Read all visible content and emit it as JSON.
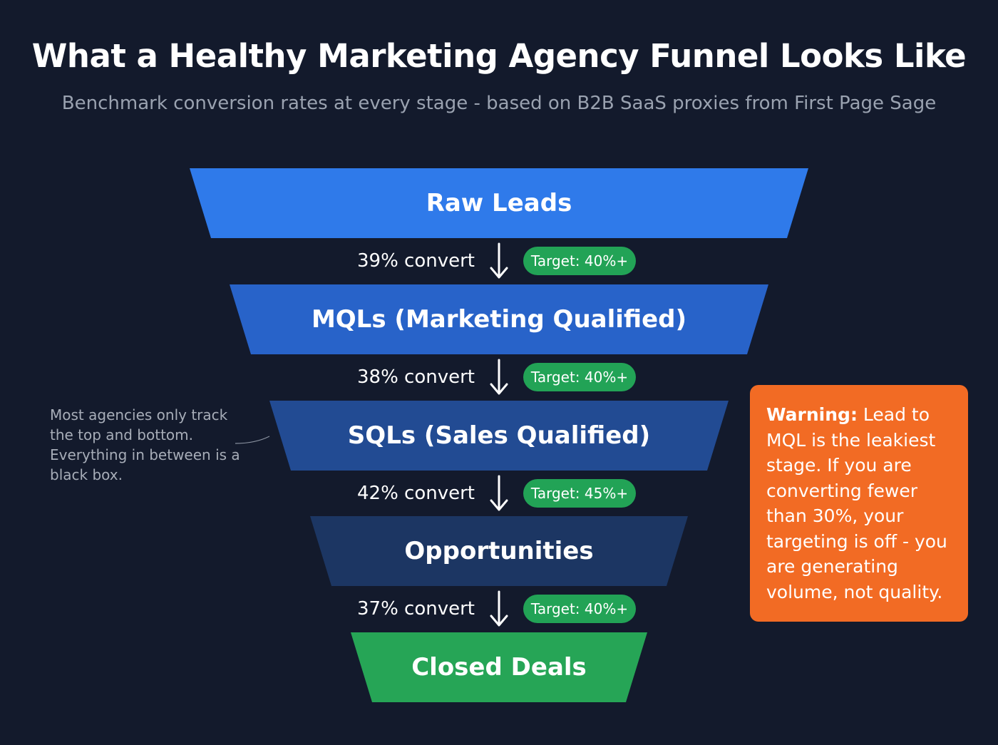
{
  "title": "What a Healthy Marketing Agency Funnel Looks Like",
  "subtitle": "Benchmark conversion rates at every stage - based on B2B SaaS proxies from First Page Sage",
  "stages": [
    {
      "label": "Raw Leads",
      "color": "#2f7aea"
    },
    {
      "label": "MQLs (Marketing Qualified)",
      "color": "#2863c9"
    },
    {
      "label": "SQLs (Sales Qualified)",
      "color": "#224b93"
    },
    {
      "label": "Opportunities",
      "color": "#1c3663"
    },
    {
      "label": "Closed Deals",
      "color": "#26a556"
    }
  ],
  "conversions": [
    {
      "rate": "39% convert",
      "target": "Target: 40%+"
    },
    {
      "rate": "38% convert",
      "target": "Target: 40%+"
    },
    {
      "rate": "42% convert",
      "target": "Target: 45%+"
    },
    {
      "rate": "37% convert",
      "target": "Target: 40%+"
    }
  ],
  "side_note": "Most agencies only track the top and bottom. Everything in between is a black box.",
  "warning": {
    "lead": "Warning:",
    "body": " Lead to MQL is the leakiest stage. If you are converting fewer than 30%, your targeting is off - you are generating volume, not quality."
  },
  "colors": {
    "background": "#131a2c",
    "target_badge": "#22a356",
    "warning": "#f26b24"
  }
}
